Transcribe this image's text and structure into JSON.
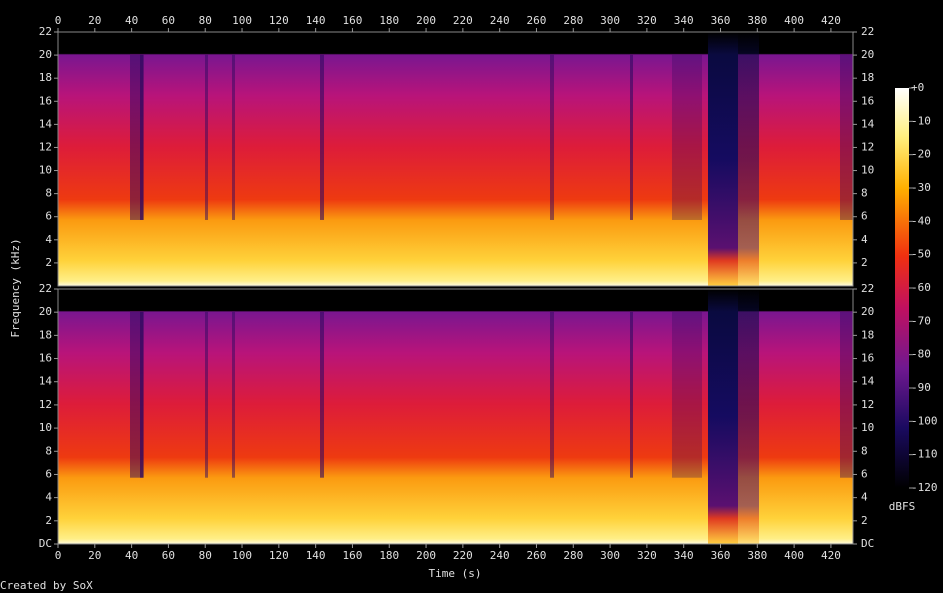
{
  "chart_data": {
    "type": "spectrogram",
    "x_label": "Time (s)",
    "y_label": "Frequency (kHz)",
    "xlim": [
      0,
      432
    ],
    "xticks": [
      0,
      20,
      40,
      60,
      80,
      100,
      120,
      140,
      160,
      180,
      200,
      220,
      240,
      260,
      280,
      300,
      320,
      340,
      360,
      380,
      400,
      420
    ],
    "channels": [
      {
        "ylim": [
          0,
          22
        ],
        "yticks": [
          2,
          4,
          6,
          8,
          10,
          12,
          14,
          16,
          18,
          20,
          22
        ]
      },
      {
        "ylim": [
          0,
          22
        ],
        "yticks": [
          {
            "value": 0,
            "label": "DC"
          },
          2,
          4,
          6,
          8,
          10,
          12,
          14,
          16,
          18,
          20,
          22
        ]
      }
    ],
    "colorbar": {
      "label": "dBFS",
      "lim": [
        -120,
        0
      ],
      "ticks": [
        {
          "value": 0,
          "label": "+0"
        },
        -10,
        -20,
        -30,
        -40,
        -50,
        -60,
        -70,
        -80,
        -90,
        -100,
        -110,
        -120
      ]
    },
    "credit": "Created by SoX"
  }
}
